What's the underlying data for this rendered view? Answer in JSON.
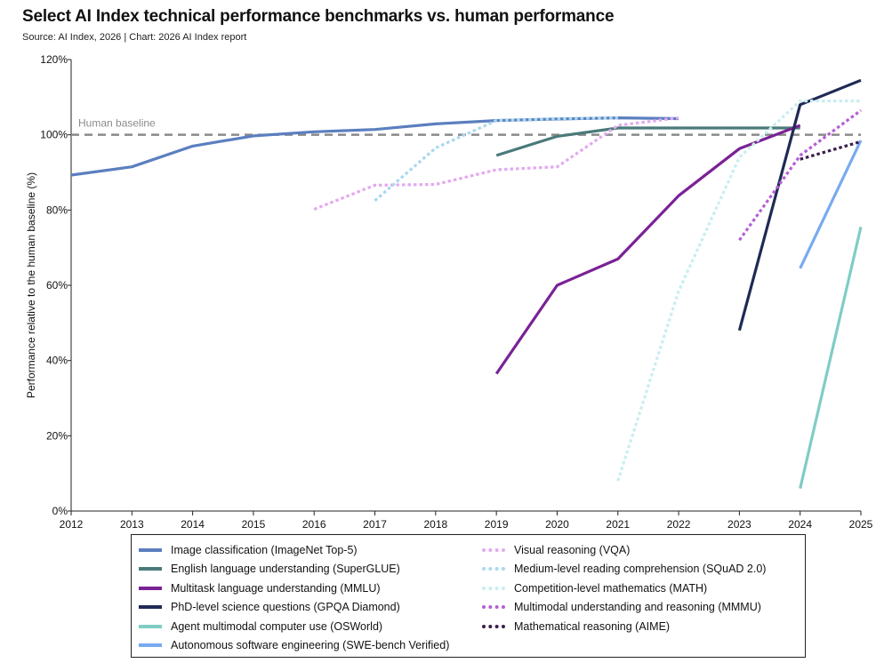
{
  "header": {
    "title": "Select AI Index technical performance benchmarks vs. human performance",
    "subtitle": "Source: AI Index, 2026 | Chart: 2026 AI Index report"
  },
  "chart_data": {
    "type": "line",
    "title": "Select AI Index technical performance benchmarks vs. human performance",
    "xlabel": "",
    "ylabel": "Performance relative to the human baseline (%)",
    "xlim": [
      2012,
      2025
    ],
    "ylim": [
      0,
      120
    ],
    "x_ticks": [
      "2012",
      "2013",
      "2014",
      "2015",
      "2016",
      "2017",
      "2018",
      "2019",
      "2020",
      "2021",
      "2022",
      "2023",
      "2024",
      "2025"
    ],
    "y_ticks": [
      "0%",
      "20%",
      "40%",
      "60%",
      "80%",
      "100%",
      "120%"
    ],
    "grid": false,
    "legend_position": "bottom",
    "reference_line": {
      "label": "Human baseline",
      "value": 100,
      "color": "#8a8a8a"
    },
    "series": [
      {
        "name": "Image classification (ImageNet Top-5)",
        "color": "#5b7fbf",
        "dash": "solid",
        "points": [
          [
            2012,
            89.3
          ],
          [
            2013,
            91.5
          ],
          [
            2014,
            97.0
          ],
          [
            2015,
            99.7
          ],
          [
            2016,
            100.8
          ],
          [
            2017,
            101.4
          ],
          [
            2018,
            102.9
          ],
          [
            2019,
            103.8
          ],
          [
            2020,
            104.2
          ],
          [
            2021,
            104.5
          ],
          [
            2022,
            104.3
          ]
        ]
      },
      {
        "name": "English language understanding (SuperGLUE)",
        "color": "#4a7a7a",
        "dash": "solid",
        "points": [
          [
            2019,
            94.5
          ],
          [
            2020,
            99.6
          ],
          [
            2021,
            101.8
          ],
          [
            2022,
            101.8
          ],
          [
            2023,
            101.8
          ],
          [
            2024,
            101.8
          ]
        ]
      },
      {
        "name": "Multitask language understanding (MMLU)",
        "color": "#7a2296",
        "dash": "solid",
        "points": [
          [
            2019,
            36.5
          ],
          [
            2020,
            60.0
          ],
          [
            2021,
            67.0
          ],
          [
            2022,
            83.8
          ],
          [
            2023,
            96.3
          ],
          [
            2024,
            102.5
          ]
        ]
      },
      {
        "name": "PhD-level science questions (GPQA Diamond)",
        "color": "#1f2a55",
        "dash": "solid",
        "points": [
          [
            2023,
            48.0
          ],
          [
            2024,
            108.0
          ],
          [
            2025,
            114.5
          ]
        ]
      },
      {
        "name": "Agent multimodal computer use (OSWorld)",
        "color": "#7fcdc4",
        "dash": "solid",
        "points": [
          [
            2024,
            6.0
          ],
          [
            2025,
            75.5
          ]
        ]
      },
      {
        "name": "Autonomous software engineering (SWE-bench Verified)",
        "color": "#78aaf0",
        "dash": "solid",
        "points": [
          [
            2024,
            64.5
          ],
          [
            2025,
            98.5
          ]
        ]
      },
      {
        "name": "Visual reasoning (VQA)",
        "color": "#e3aaf0",
        "dash": "dotted",
        "points": [
          [
            2016,
            80.2
          ],
          [
            2017,
            86.6
          ],
          [
            2018,
            86.8
          ],
          [
            2019,
            90.7
          ],
          [
            2020,
            91.5
          ],
          [
            2021,
            102.5
          ],
          [
            2022,
            104.5
          ]
        ]
      },
      {
        "name": "Medium-level reading comprehension (SQuAD 2.0)",
        "color": "#a9d8ef",
        "dash": "dotted",
        "points": [
          [
            2017,
            82.5
          ],
          [
            2018,
            96.5
          ],
          [
            2019,
            103.8
          ],
          [
            2020,
            104.3
          ],
          [
            2021,
            104.5
          ]
        ]
      },
      {
        "name": "Competition-level mathematics (MATH)",
        "color": "#c8eef0",
        "dash": "dotted",
        "points": [
          [
            2021,
            8.0
          ],
          [
            2022,
            58.5
          ],
          [
            2023,
            94.0
          ],
          [
            2024,
            109.0
          ],
          [
            2025,
            109.0
          ]
        ]
      },
      {
        "name": "Multimodal understanding and reasoning (MMMU)",
        "color": "#b55fd6",
        "dash": "dotted",
        "points": [
          [
            2023,
            72.0
          ],
          [
            2024,
            94.5
          ],
          [
            2025,
            106.5
          ]
        ]
      },
      {
        "name": "Mathematical reasoning (AIME)",
        "color": "#3a1f4a",
        "dash": "dotted",
        "points": [
          [
            2024,
            93.5
          ],
          [
            2025,
            98.2
          ]
        ]
      }
    ]
  }
}
